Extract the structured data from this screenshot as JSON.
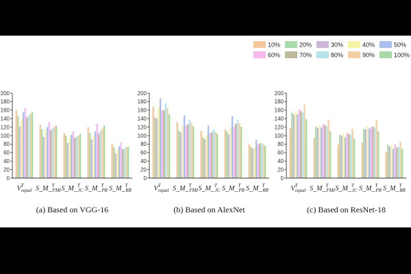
{
  "figure": {
    "legend": [
      "10%",
      "20%",
      "30%",
      "40%",
      "50%",
      "60%",
      "70%",
      "80%",
      "90%",
      "100%"
    ],
    "colors": [
      "#f5c79a",
      "#a8dba8",
      "#cdb8dc",
      "#f7f3a6",
      "#a9c0ef",
      "#f7b9ee",
      "#bdb99a",
      "#b5e3ea",
      "#f4cfa3",
      "#a6d9a3"
    ]
  },
  "chart_data": [
    {
      "type": "bar",
      "title": "(a) Based on VGG-16",
      "ylim": [
        0,
        200
      ],
      "yticks": [
        "0",
        "20",
        "40",
        "60",
        "80",
        "100",
        "120",
        "140",
        "160",
        "180",
        "200"
      ],
      "categories": [
        "V_equal^T",
        "S_M_FMI^T",
        "S_M_JC^T",
        "S_M_PR^T",
        "S_M_RR^T"
      ],
      "series": [
        {
          "name": "10%",
          "values": [
            160,
            126,
            106,
            120,
            80
          ]
        },
        {
          "name": "20%",
          "values": [
            147,
            115,
            100,
            107,
            72
          ]
        },
        {
          "name": "30%",
          "values": [
            122,
            97,
            83,
            91,
            58
          ]
        },
        {
          "name": "40%",
          "values": [
            140,
            115,
            93,
            100,
            66
          ]
        },
        {
          "name": "50%",
          "values": [
            155,
            120,
            102,
            110,
            75
          ]
        },
        {
          "name": "60%",
          "values": [
            165,
            132,
            110,
            128,
            85
          ]
        },
        {
          "name": "70%",
          "values": [
            143,
            113,
            95,
            105,
            68
          ]
        },
        {
          "name": "80%",
          "values": [
            148,
            118,
            98,
            112,
            70
          ]
        },
        {
          "name": "90%",
          "values": [
            152,
            121,
            100,
            117,
            73
          ]
        },
        {
          "name": "100%",
          "values": [
            155,
            123,
            104,
            124,
            74
          ]
        }
      ]
    },
    {
      "type": "bar",
      "title": "(b) Based on AlexNet",
      "ylim": [
        0,
        200
      ],
      "yticks": [
        "0",
        "20",
        "40",
        "60",
        "80",
        "100",
        "120",
        "140",
        "160",
        "180",
        "200"
      ],
      "categories": [
        "V_equal^T",
        "S_M_FMI^T",
        "S_M_JC^T",
        "S_M_PR^T",
        "S_M_RR^T"
      ],
      "series": [
        {
          "name": "10%",
          "values": [
            168,
            132,
            111,
            115,
            80
          ]
        },
        {
          "name": "20%",
          "values": [
            143,
            112,
            96,
            110,
            74
          ]
        },
        {
          "name": "30%",
          "values": [
            140,
            108,
            92,
            103,
            70
          ]
        },
        {
          "name": "40%",
          "values": [
            166,
            124,
            101,
            120,
            71
          ]
        },
        {
          "name": "50%",
          "values": [
            188,
            148,
            124,
            146,
            90
          ]
        },
        {
          "name": "60%",
          "values": [
            160,
            124,
            106,
            121,
            79
          ]
        },
        {
          "name": "70%",
          "values": [
            160,
            127,
            108,
            128,
            82
          ]
        },
        {
          "name": "80%",
          "values": [
            176,
            137,
            115,
            137,
            82
          ]
        },
        {
          "name": "90%",
          "values": [
            166,
            130,
            109,
            129,
            80
          ]
        },
        {
          "name": "100%",
          "values": [
            150,
            122,
            104,
            121,
            76
          ]
        }
      ]
    },
    {
      "type": "bar",
      "title": "(c) Based on ResNet-18",
      "ylim": [
        0,
        200
      ],
      "yticks": [
        "0",
        "20",
        "40",
        "60",
        "80",
        "100",
        "120",
        "140",
        "160",
        "180",
        "200"
      ],
      "categories": [
        "V_equal^T",
        "S_M_FMI^T",
        "S_M_JC^T",
        "S_M_PR^T",
        "S_M_RR^T"
      ],
      "series": [
        {
          "name": "10%",
          "values": [
            118,
            95,
            79,
            84,
            61
          ]
        },
        {
          "name": "20%",
          "values": [
            154,
            121,
            102,
            116,
            79
          ]
        },
        {
          "name": "30%",
          "values": [
            150,
            118,
            100,
            115,
            75
          ]
        },
        {
          "name": "40%",
          "values": [
            157,
            123,
            104,
            123,
            77
          ]
        },
        {
          "name": "50%",
          "values": [
            150,
            119,
            96,
            117,
            69
          ]
        },
        {
          "name": "60%",
          "values": [
            162,
            127,
            106,
            120,
            80
          ]
        },
        {
          "name": "70%",
          "values": [
            158,
            125,
            104,
            121,
            72
          ]
        },
        {
          "name": "80%",
          "values": [
            155,
            122,
            102,
            119,
            74
          ]
        },
        {
          "name": "90%",
          "values": [
            173,
            137,
            116,
            137,
            86
          ]
        },
        {
          "name": "100%",
          "values": [
            139,
            110,
            93,
            110,
            69
          ]
        }
      ]
    }
  ]
}
